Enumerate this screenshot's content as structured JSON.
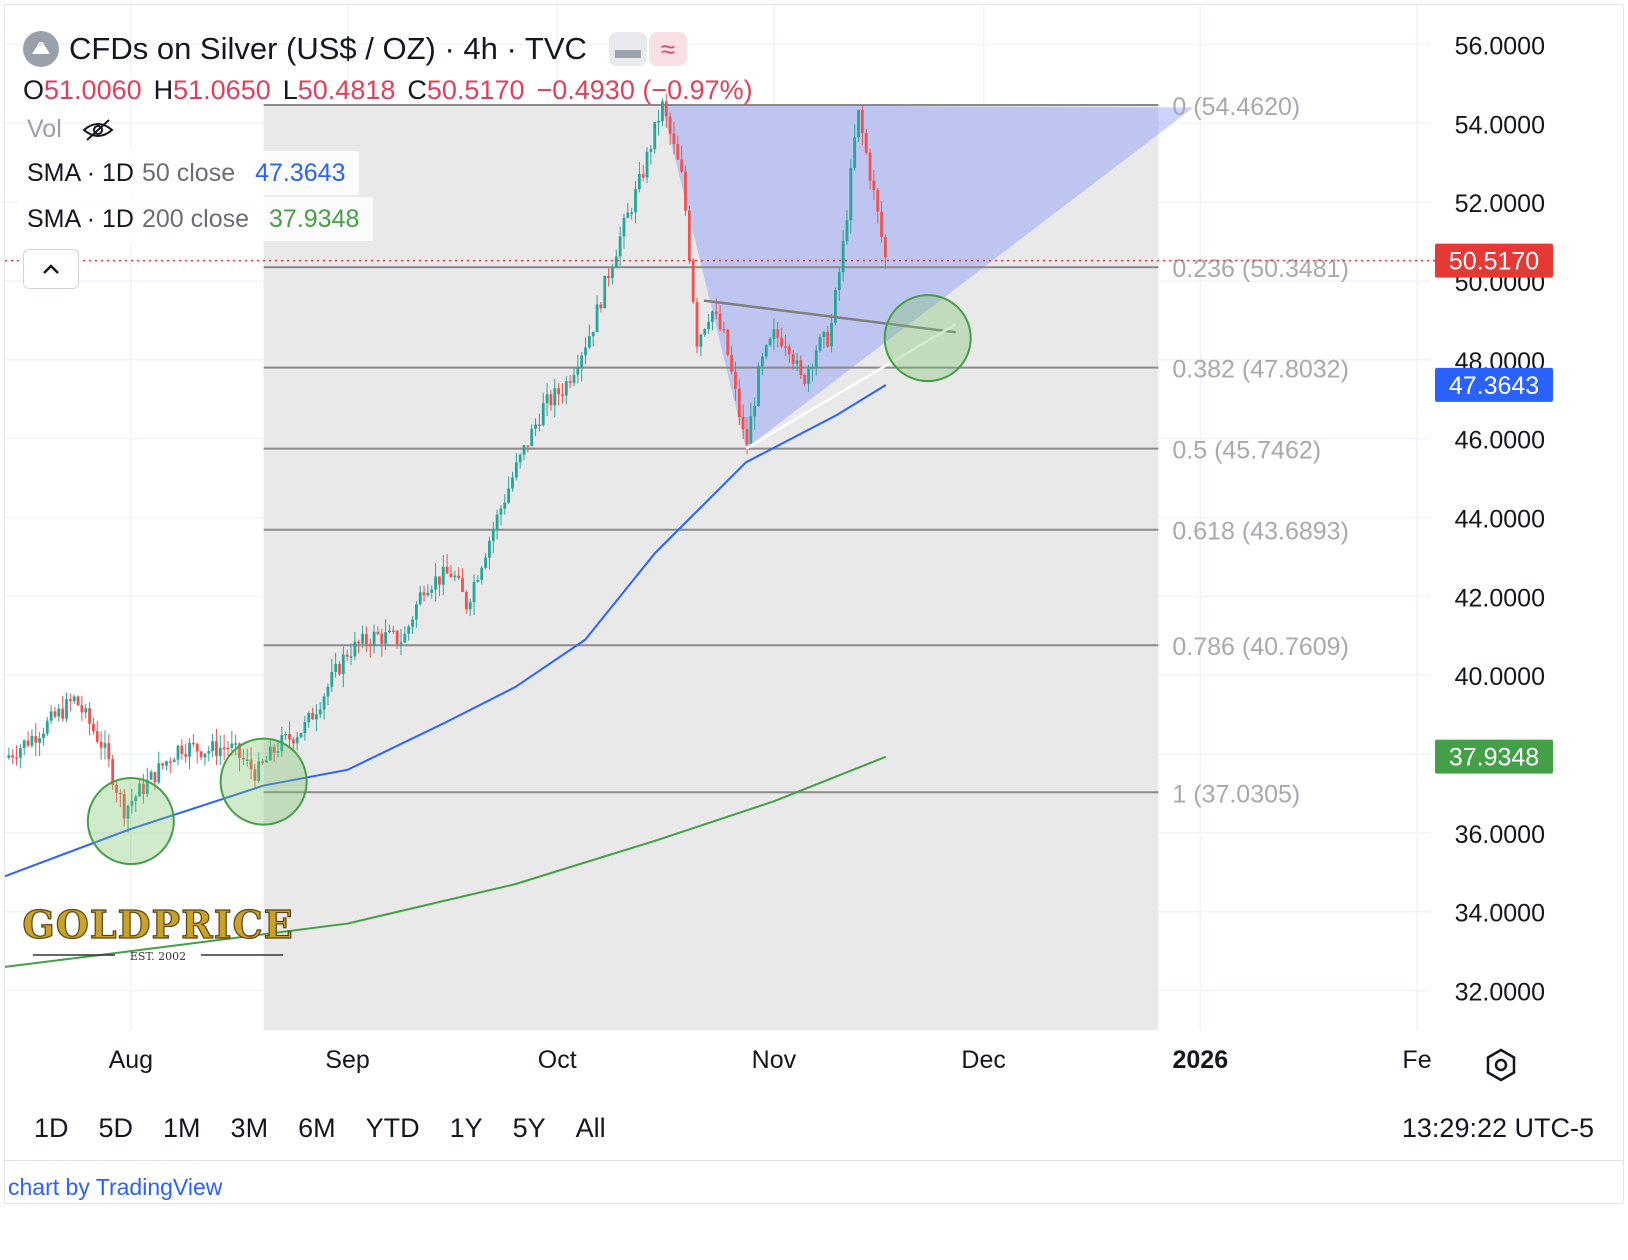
{
  "header": {
    "symbol_title": "CFDs on Silver (US$ / OZ) · 4h · TVC",
    "ohlc": [
      {
        "key": "O",
        "value": "51.0060"
      },
      {
        "key": "H",
        "value": "51.0650"
      },
      {
        "key": "L",
        "value": "50.4818"
      },
      {
        "key": "C",
        "value": "50.5170"
      }
    ],
    "change": "−0.4930 (−0.97%)",
    "vol_label": "Vol",
    "indicators": [
      {
        "name": "SMA · 1D",
        "params": "50 close",
        "value": "47.3643",
        "color": "#2962ff"
      },
      {
        "name": "SMA · 1D",
        "params": "200 close",
        "value": "37.9348",
        "color": "#43a047"
      }
    ]
  },
  "chart_data": {
    "type": "candlestick",
    "title": "CFDs on Silver (US$ / OZ) · 4h · TVC",
    "y_axis": {
      "ticks": [
        "56.0000",
        "54.0000",
        "52.0000",
        "50.0000",
        "48.0000",
        "46.0000",
        "44.0000",
        "42.0000",
        "40.0000",
        "36.0000",
        "34.0000",
        "32.0000"
      ],
      "ylim": [
        31,
        57
      ]
    },
    "x_axis": {
      "ticks": [
        {
          "label": "Aug",
          "x": "2025-08-01"
        },
        {
          "label": "Sep",
          "x": "2025-09-01"
        },
        {
          "label": "Oct",
          "x": "2025-10-01"
        },
        {
          "label": "Nov",
          "x": "2025-11-01"
        },
        {
          "label": "Dec",
          "x": "2025-12-01"
        },
        {
          "label": "2026",
          "x": "2026-01-01"
        },
        {
          "label": "Fe",
          "x": "2026-02-01"
        }
      ],
      "xlim": [
        "2025-07-14",
        "2026-02-03"
      ]
    },
    "price_path": [
      [
        "2025-07-14",
        37.9
      ],
      [
        "2025-07-17",
        38.3
      ],
      [
        "2025-07-21",
        38.9
      ],
      [
        "2025-07-24",
        39.4
      ],
      [
        "2025-07-28",
        38.2
      ],
      [
        "2025-07-31",
        36.6
      ],
      [
        "2025-08-04",
        37.4
      ],
      [
        "2025-08-08",
        38.2
      ],
      [
        "2025-08-12",
        38.1
      ],
      [
        "2025-08-15",
        38.2
      ],
      [
        "2025-08-19",
        37.5
      ],
      [
        "2025-08-22",
        38.2
      ],
      [
        "2025-08-26",
        38.7
      ],
      [
        "2025-09-01",
        40.6
      ],
      [
        "2025-09-05",
        41.0
      ],
      [
        "2025-09-09",
        40.9
      ],
      [
        "2025-09-12",
        42.3
      ],
      [
        "2025-09-16",
        42.6
      ],
      [
        "2025-09-18",
        41.8
      ],
      [
        "2025-09-22",
        43.8
      ],
      [
        "2025-09-25",
        45.2
      ],
      [
        "2025-09-29",
        46.8
      ],
      [
        "2025-10-02",
        47.3
      ],
      [
        "2025-10-06",
        48.8
      ],
      [
        "2025-10-09",
        50.6
      ],
      [
        "2025-10-13",
        52.6
      ],
      [
        "2025-10-16",
        54.46
      ],
      [
        "2025-10-19",
        52.5
      ],
      [
        "2025-10-21",
        48.5
      ],
      [
        "2025-10-23",
        49.3
      ],
      [
        "2025-10-25",
        48.5
      ],
      [
        "2025-10-28",
        45.75
      ],
      [
        "2025-10-30",
        47.8
      ],
      [
        "2025-11-01",
        48.6
      ],
      [
        "2025-11-03",
        48.5
      ],
      [
        "2025-11-05",
        47.4
      ],
      [
        "2025-11-07",
        48.3
      ],
      [
        "2025-11-09",
        48.6
      ],
      [
        "2025-11-11",
        51.0
      ],
      [
        "2025-11-13",
        54.3
      ],
      [
        "2025-11-15",
        52.5
      ],
      [
        "2025-11-17",
        50.52
      ]
    ],
    "series": [
      {
        "name": "SMA · 1D 50 close",
        "color": "#2962ff",
        "points": [
          [
            "2025-07-14",
            34.9
          ],
          [
            "2025-08-01",
            36.1
          ],
          [
            "2025-08-20",
            37.2
          ],
          [
            "2025-09-01",
            37.6
          ],
          [
            "2025-09-15",
            38.8
          ],
          [
            "2025-09-25",
            39.7
          ],
          [
            "2025-10-05",
            40.9
          ],
          [
            "2025-10-15",
            43.1
          ],
          [
            "2025-10-28",
            45.4
          ],
          [
            "2025-11-10",
            46.6
          ],
          [
            "2025-11-17",
            47.36
          ]
        ]
      },
      {
        "name": "SMA · 1D 200 close",
        "color": "#43a047",
        "points": [
          [
            "2025-07-14",
            32.6
          ],
          [
            "2025-08-01",
            33.0
          ],
          [
            "2025-09-01",
            33.7
          ],
          [
            "2025-09-25",
            34.7
          ],
          [
            "2025-10-15",
            35.8
          ],
          [
            "2025-11-01",
            36.8
          ],
          [
            "2025-11-17",
            37.93
          ]
        ]
      }
    ],
    "fibonacci": {
      "levels": [
        {
          "label": "0 (54.4620)",
          "value": 54.462
        },
        {
          "label": "0.236 (50.3481)",
          "value": 50.3481
        },
        {
          "label": "0.382 (47.8032)",
          "value": 47.8032
        },
        {
          "label": "0.5 (45.7462)",
          "value": 45.7462
        },
        {
          "label": "0.618 (43.6893)",
          "value": 43.6893
        },
        {
          "label": "0.786 (40.7609)",
          "value": 40.7609
        },
        {
          "label": "1 (37.0305)",
          "value": 37.0305
        }
      ],
      "x_start": "2025-08-20",
      "x_end": "2025-12-26"
    },
    "triangle": {
      "points": [
        [
          "2025-10-16",
          54.46
        ],
        [
          "2025-10-28",
          45.75
        ],
        [
          "2025-12-31",
          54.4
        ]
      ],
      "color": "#7b8cff"
    },
    "trendlines": [
      {
        "from": [
          "2025-10-22",
          49.5
        ],
        "to": [
          "2025-11-27",
          48.7
        ],
        "color": "#808080"
      },
      {
        "from": [
          "2025-10-28",
          45.75
        ],
        "to": [
          "2025-11-27",
          48.9
        ],
        "color": "#ffffff"
      }
    ],
    "circles": [
      {
        "center": [
          "2025-08-01",
          36.3
        ]
      },
      {
        "center": [
          "2025-08-20",
          37.3
        ]
      },
      {
        "center": [
          "2025-11-23",
          48.55
        ]
      }
    ],
    "current_price_label": {
      "value": "50.5170",
      "color": "#e53935"
    },
    "axis_badges": [
      {
        "value": "47.3643",
        "color": "#2962ff"
      },
      {
        "value": "37.9348",
        "color": "#43a047"
      }
    ],
    "watermark": {
      "text": "GOLDPRICE",
      "sub": "EST. 2002"
    }
  },
  "timeframes": [
    "1D",
    "5D",
    "1M",
    "3M",
    "6M",
    "YTD",
    "1Y",
    "5Y",
    "All"
  ],
  "clock": "13:29:22 UTC-5",
  "attribution": "chart by TradingView",
  "colors": {
    "up": "#26a69a",
    "down": "#ef5350",
    "fib_zone": "#e9e9e9",
    "grid": "#f0f3fa"
  }
}
